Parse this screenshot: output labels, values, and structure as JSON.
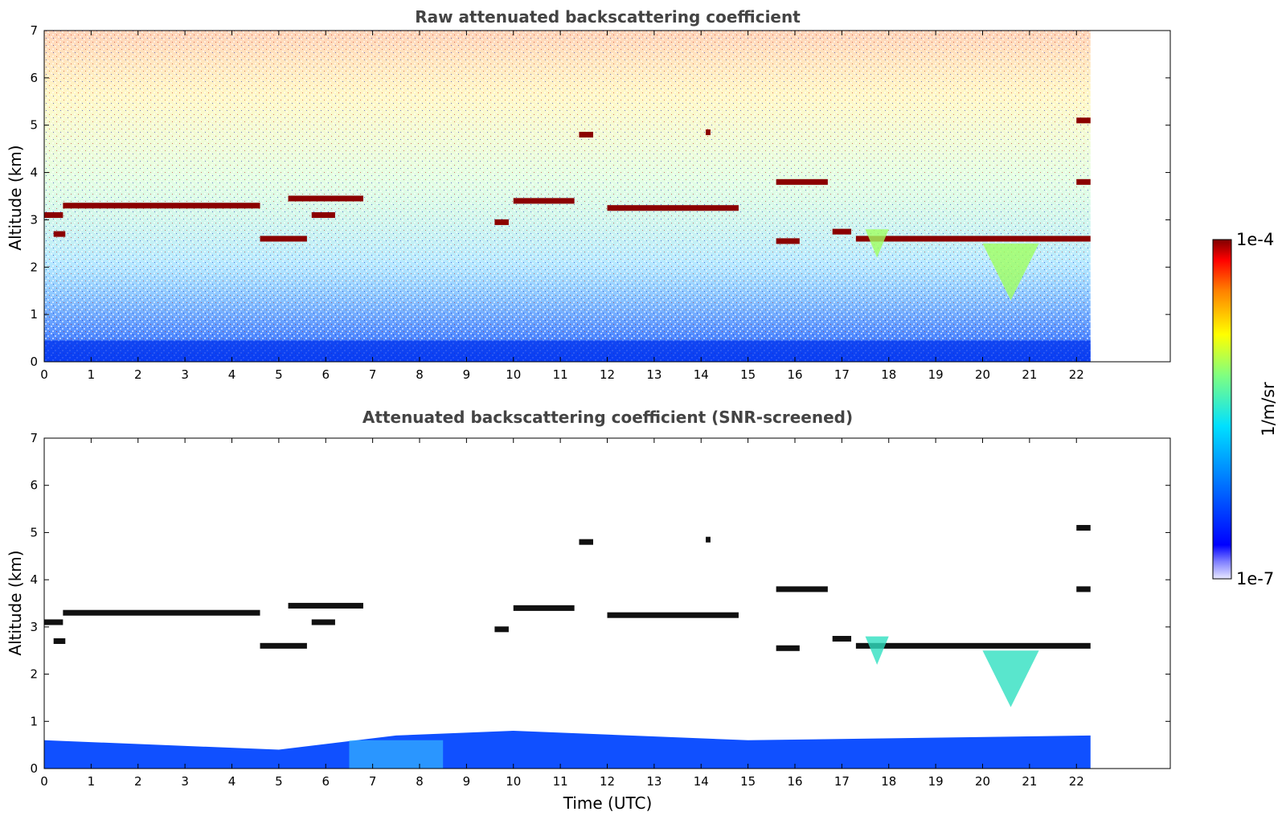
{
  "chart_data": [
    {
      "type": "heatmap",
      "title": "Raw attenuated backscattering coefficient",
      "xlabel": "",
      "ylabel": "Altitude (km)",
      "xlim": [
        0,
        24
      ],
      "ylim": [
        0,
        7
      ],
      "x_ticks": [
        "0",
        "1",
        "2",
        "3",
        "4",
        "5",
        "6",
        "7",
        "8",
        "9",
        "10",
        "11",
        "12",
        "13",
        "14",
        "15",
        "16",
        "17",
        "18",
        "19",
        "20",
        "21",
        "22"
      ],
      "y_ticks": [
        "0",
        "1",
        "2",
        "3",
        "4",
        "5",
        "6",
        "7"
      ],
      "data_end_time": 22.3,
      "colorbar_range": [
        "1e-7",
        "1e-4"
      ],
      "cloud_layers": [
        {
          "t_start": 0.0,
          "t_end": 0.4,
          "altitude": 3.1
        },
        {
          "t_start": 0.2,
          "t_end": 0.45,
          "altitude": 2.7
        },
        {
          "t_start": 0.4,
          "t_end": 4.6,
          "altitude": 3.3
        },
        {
          "t_start": 4.6,
          "t_end": 5.6,
          "altitude": 2.6
        },
        {
          "t_start": 5.2,
          "t_end": 6.8,
          "altitude": 3.45
        },
        {
          "t_start": 5.7,
          "t_end": 6.2,
          "altitude": 3.1
        },
        {
          "t_start": 9.6,
          "t_end": 9.9,
          "altitude": 2.95
        },
        {
          "t_start": 10.0,
          "t_end": 11.3,
          "altitude": 3.4
        },
        {
          "t_start": 11.4,
          "t_end": 11.7,
          "altitude": 4.8
        },
        {
          "t_start": 12.0,
          "t_end": 14.8,
          "altitude": 3.25
        },
        {
          "t_start": 14.1,
          "t_end": 14.2,
          "altitude": 4.85
        },
        {
          "t_start": 15.6,
          "t_end": 16.7,
          "altitude": 3.8
        },
        {
          "t_start": 15.6,
          "t_end": 16.1,
          "altitude": 2.55
        },
        {
          "t_start": 16.8,
          "t_end": 17.2,
          "altitude": 2.75
        },
        {
          "t_start": 17.3,
          "t_end": 22.3,
          "altitude": 2.6
        },
        {
          "t_start": 22.0,
          "t_end": 22.3,
          "altitude": 3.8
        },
        {
          "t_start": 22.0,
          "t_end": 22.3,
          "altitude": 5.1
        }
      ],
      "precipitation": [
        {
          "t_start": 17.5,
          "t_end": 18.0,
          "altitude_top": 2.8,
          "altitude_bottom": 2.2
        },
        {
          "t_start": 20.0,
          "t_end": 21.2,
          "altitude_top": 2.5,
          "altitude_bottom": 1.3
        }
      ],
      "boundary_layer_top": [
        {
          "t": 0,
          "altitude": 0.6
        },
        {
          "t": 5,
          "altitude": 0.4
        },
        {
          "t": 7.5,
          "altitude": 0.7
        },
        {
          "t": 10,
          "altitude": 0.8
        },
        {
          "t": 15,
          "altitude": 0.6
        },
        {
          "t": 22.3,
          "altitude": 0.7
        }
      ]
    },
    {
      "type": "heatmap",
      "title": "Attenuated backscattering coefficient (SNR-screened)",
      "xlabel": "Time (UTC)",
      "ylabel": "Altitude (km)",
      "xlim": [
        0,
        24
      ],
      "ylim": [
        0,
        7
      ],
      "x_ticks": [
        "0",
        "1",
        "2",
        "3",
        "4",
        "5",
        "6",
        "7",
        "8",
        "9",
        "10",
        "11",
        "12",
        "13",
        "14",
        "15",
        "16",
        "17",
        "18",
        "19",
        "20",
        "21",
        "22"
      ],
      "y_ticks": [
        "0",
        "1",
        "2",
        "3",
        "4",
        "5",
        "6",
        "7"
      ],
      "data_end_time": 22.3,
      "colorbar_range": [
        "1e-7",
        "1e-4"
      ]
    }
  ],
  "colorbar": {
    "top_label": "1e-4",
    "bottom_label": "1e-7",
    "units": "1/m/sr",
    "colors": [
      "#7f0000",
      "#ff0000",
      "#ff8000",
      "#ffff00",
      "#80ff80",
      "#00ffff",
      "#0080ff",
      "#0000ff",
      "#00008f"
    ]
  }
}
